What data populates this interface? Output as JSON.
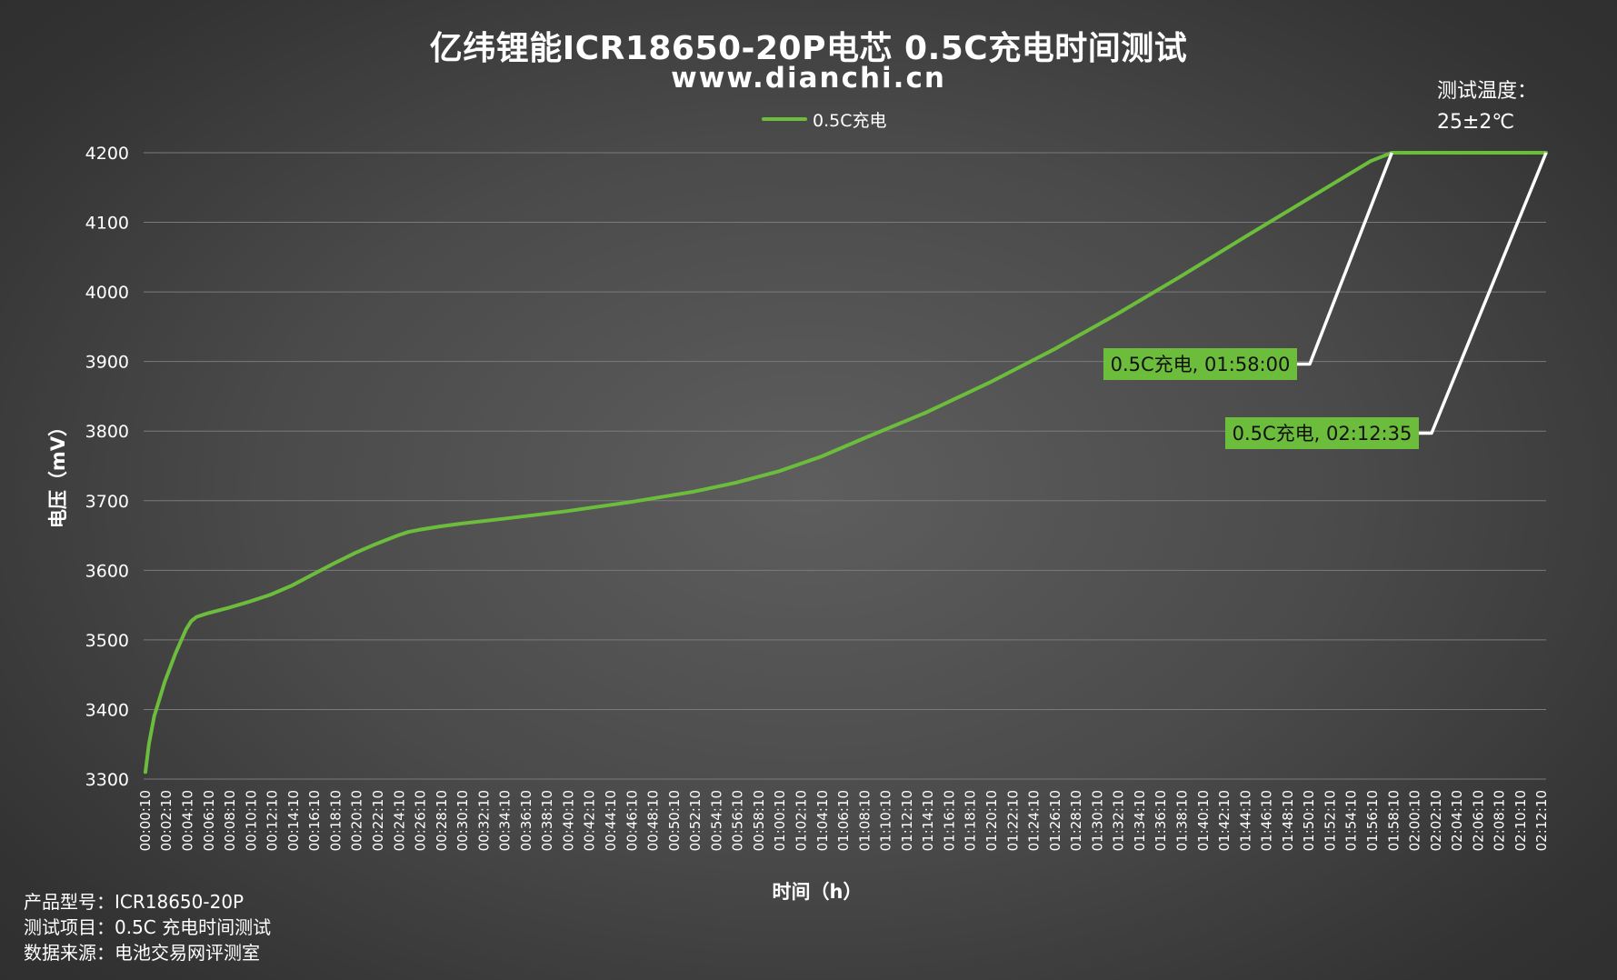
{
  "title": "亿纬锂能ICR18650-20P电芯 0.5C充电时间测试",
  "subtitle": "www.dianchi.cn",
  "temperature": {
    "line1": "测试温度：",
    "line2": "25±2℃"
  },
  "footer": {
    "model": "产品型号：ICR18650-20P",
    "test_item": "测试项目：0.5C 充电时间测试",
    "source": "数据来源：电池交易网评测室"
  },
  "colors": {
    "series": "#6cbd3c",
    "callout_bg": "#6cbd3c",
    "callout_line": "#ffffff",
    "grid": "#7a7a7a"
  },
  "chart_data": {
    "type": "line",
    "title": "亿纬锂能ICR18650-20P电芯 0.5C充电时间测试",
    "xlabel": "时间（h）",
    "ylabel": "电压（mV）",
    "ylim": [
      3300,
      4200
    ],
    "yticks": [
      3300,
      3400,
      3500,
      3600,
      3700,
      3800,
      3900,
      4000,
      4100,
      4200
    ],
    "xlim_minutes": [
      0,
      132.58
    ],
    "xtick_labels": [
      "00:00:10",
      "00:02:10",
      "00:04:10",
      "00:06:10",
      "00:08:10",
      "00:10:10",
      "00:12:10",
      "00:14:10",
      "00:16:10",
      "00:18:10",
      "00:20:10",
      "00:22:10",
      "00:24:10",
      "00:26:10",
      "00:28:10",
      "00:30:10",
      "00:32:10",
      "00:34:10",
      "00:36:10",
      "00:38:10",
      "00:40:10",
      "00:42:10",
      "00:44:10",
      "00:46:10",
      "00:48:10",
      "00:50:10",
      "00:52:10",
      "00:54:10",
      "00:56:10",
      "00:58:10",
      "01:00:10",
      "01:02:10",
      "01:04:10",
      "01:06:10",
      "01:08:10",
      "01:10:10",
      "01:12:10",
      "01:14:10",
      "01:16:10",
      "01:18:10",
      "01:20:10",
      "01:22:10",
      "01:24:10",
      "01:26:10",
      "01:28:10",
      "01:30:10",
      "01:32:10",
      "01:34:10",
      "01:36:10",
      "01:38:10",
      "01:40:10",
      "01:42:10",
      "01:44:10",
      "01:46:10",
      "01:48:10",
      "01:50:10",
      "01:52:10",
      "01:54:10",
      "01:56:10",
      "01:58:10",
      "02:00:10",
      "02:02:10",
      "02:04:10",
      "02:06:10",
      "02:08:10",
      "02:10:10",
      "02:12:10"
    ],
    "grid": true,
    "legend": "top-center",
    "series": [
      {
        "name": "0.5C充电",
        "x_minutes": [
          0.17,
          0.5,
          1.0,
          2.0,
          3.0,
          4.0,
          4.5,
          5.0,
          6.0,
          8.0,
          10.0,
          12.0,
          14.0,
          16.0,
          18.0,
          20.0,
          22.0,
          24.0,
          25.0,
          26.0,
          28.0,
          30.0,
          34.0,
          40.0,
          46.0,
          52.0,
          56.0,
          60.0,
          64.0,
          68.0,
          74.0,
          80.0,
          86.0,
          92.0,
          98.0,
          104.0,
          110.0,
          116.0,
          118.0,
          120.0,
          124.0,
          128.0,
          132.58
        ],
        "values": [
          3310,
          3350,
          3390,
          3440,
          3480,
          3515,
          3527,
          3533,
          3538,
          3546,
          3555,
          3565,
          3578,
          3594,
          3610,
          3625,
          3638,
          3650,
          3655,
          3658,
          3663,
          3667,
          3674,
          3685,
          3698,
          3713,
          3726,
          3742,
          3763,
          3789,
          3827,
          3870,
          3917,
          3968,
          4022,
          4078,
          4133,
          4188,
          4200,
          4200,
          4200,
          4200,
          4200
        ]
      }
    ],
    "annotations": [
      {
        "label": "0.5C充电, 01:58:00",
        "time": "01:58:00",
        "value": 4200
      },
      {
        "label": "0.5C充电, 02:12:35",
        "time": "02:12:35",
        "value": 4200
      }
    ]
  }
}
